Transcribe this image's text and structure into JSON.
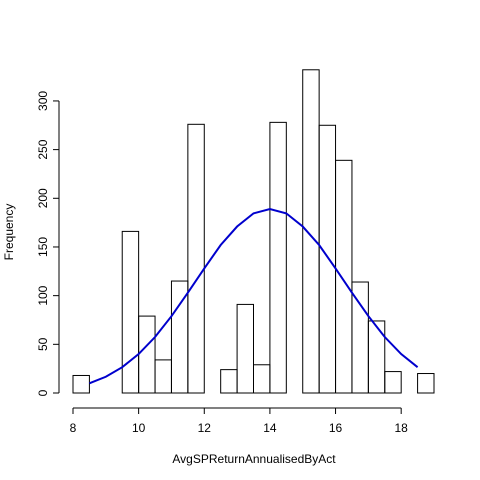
{
  "chart_data": {
    "type": "histogram",
    "xlabel": "AvgSPReturnAnnualisedByAct",
    "ylabel": "Frequency",
    "bins": [
      8,
      8.5,
      9,
      9.5,
      10,
      10.5,
      11,
      11.5,
      12,
      12.5,
      13,
      13.5,
      14,
      14.5,
      15,
      15.5,
      16,
      16.5,
      17,
      17.5,
      18,
      18.5,
      19
    ],
    "values": [
      18,
      0,
      0,
      166,
      79,
      34,
      115,
      276,
      0,
      24,
      91,
      29,
      278,
      0,
      332,
      275,
      239,
      114,
      74,
      22,
      0,
      20
    ],
    "color": "#000000",
    "curve": {
      "color": "#0000cd",
      "x": [
        8.5,
        9,
        9.5,
        10,
        10.5,
        11,
        11.5,
        12,
        12.5,
        13,
        13.5,
        14,
        14.5,
        15,
        15.5,
        16,
        16.5,
        17,
        17.5,
        18,
        18.5
      ],
      "values": [
        10,
        16.7,
        26.5,
        40,
        57.5,
        78.9,
        103,
        128,
        152,
        171,
        184.5,
        189,
        184.5,
        171,
        152,
        128,
        103,
        79,
        57.5,
        40,
        26.5
      ]
    },
    "xlim": [
      8,
      19
    ],
    "ylim": [
      0,
      340
    ],
    "xticks": [
      8,
      10,
      12,
      14,
      16,
      18
    ],
    "yticks": [
      0,
      50,
      100,
      150,
      200,
      250,
      300
    ]
  }
}
